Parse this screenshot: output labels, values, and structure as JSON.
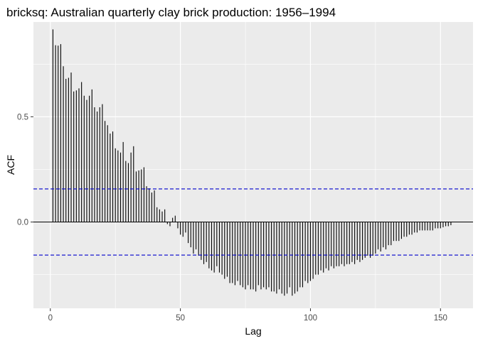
{
  "chart_data": {
    "type": "bar",
    "title": "bricksq: Australian quarterly clay brick production: 1956–1994",
    "xlabel": "Lag",
    "ylabel": "ACF",
    "xlim": [
      -6.5,
      162.5
    ],
    "ylim": [
      -0.41,
      0.95
    ],
    "x_ticks": [
      0,
      50,
      100,
      150
    ],
    "y_ticks": [
      -0.5,
      0.0,
      0.5
    ],
    "y_tick_labels": [
      "0.0",
      "0.5"
    ],
    "x_tick_labels": [
      "0",
      "50",
      "100",
      "150"
    ],
    "grid": true,
    "confidence_bound": 0.157,
    "colors": {
      "panel": "#ebebeb",
      "grid_major": "#ffffff",
      "bars": "#000000",
      "ci": "#0000cc",
      "zero_line": "#000000"
    },
    "lags": [
      1,
      2,
      3,
      4,
      5,
      6,
      7,
      8,
      9,
      10,
      11,
      12,
      13,
      14,
      15,
      16,
      17,
      18,
      19,
      20,
      21,
      22,
      23,
      24,
      25,
      26,
      27,
      28,
      29,
      30,
      31,
      32,
      33,
      34,
      35,
      36,
      37,
      38,
      39,
      40,
      41,
      42,
      43,
      44,
      45,
      46,
      47,
      48,
      49,
      50,
      51,
      52,
      53,
      54,
      55,
      56,
      57,
      58,
      59,
      60,
      61,
      62,
      63,
      64,
      65,
      66,
      67,
      68,
      69,
      70,
      71,
      72,
      73,
      74,
      75,
      76,
      77,
      78,
      79,
      80,
      81,
      82,
      83,
      84,
      85,
      86,
      87,
      88,
      89,
      90,
      91,
      92,
      93,
      94,
      95,
      96,
      97,
      98,
      99,
      100,
      101,
      102,
      103,
      104,
      105,
      106,
      107,
      108,
      109,
      110,
      111,
      112,
      113,
      114,
      115,
      116,
      117,
      118,
      119,
      120,
      121,
      122,
      123,
      124,
      125,
      126,
      127,
      128,
      129,
      130,
      131,
      132,
      133,
      134,
      135,
      136,
      137,
      138,
      139,
      140,
      141,
      142,
      143,
      144,
      145,
      146,
      147,
      148,
      149,
      150,
      151,
      152,
      153,
      154
    ],
    "values": [
      0.915,
      0.84,
      0.838,
      0.845,
      0.74,
      0.68,
      0.685,
      0.71,
      0.62,
      0.625,
      0.635,
      0.665,
      0.6,
      0.58,
      0.6,
      0.63,
      0.545,
      0.525,
      0.545,
      0.56,
      0.48,
      0.46,
      0.42,
      0.43,
      0.35,
      0.34,
      0.33,
      0.38,
      0.29,
      0.28,
      0.33,
      0.36,
      0.24,
      0.245,
      0.25,
      0.26,
      0.17,
      0.16,
      0.14,
      0.15,
      0.07,
      0.06,
      0.05,
      0.06,
      -0.01,
      -0.02,
      0.02,
      0.03,
      -0.03,
      -0.06,
      -0.07,
      -0.05,
      -0.1,
      -0.12,
      -0.15,
      -0.13,
      -0.16,
      -0.18,
      -0.2,
      -0.19,
      -0.22,
      -0.23,
      -0.24,
      -0.21,
      -0.24,
      -0.25,
      -0.27,
      -0.26,
      -0.29,
      -0.29,
      -0.3,
      -0.28,
      -0.3,
      -0.31,
      -0.32,
      -0.3,
      -0.32,
      -0.32,
      -0.33,
      -0.3,
      -0.32,
      -0.31,
      -0.32,
      -0.31,
      -0.33,
      -0.33,
      -0.34,
      -0.32,
      -0.34,
      -0.35,
      -0.34,
      -0.31,
      -0.35,
      -0.34,
      -0.33,
      -0.31,
      -0.31,
      -0.28,
      -0.29,
      -0.28,
      -0.27,
      -0.25,
      -0.25,
      -0.23,
      -0.24,
      -0.22,
      -0.23,
      -0.21,
      -0.22,
      -0.21,
      -0.21,
      -0.2,
      -0.21,
      -0.2,
      -0.2,
      -0.19,
      -0.2,
      -0.18,
      -0.19,
      -0.18,
      -0.17,
      -0.16,
      -0.17,
      -0.16,
      -0.15,
      -0.13,
      -0.14,
      -0.12,
      -0.13,
      -0.11,
      -0.11,
      -0.09,
      -0.09,
      -0.09,
      -0.08,
      -0.07,
      -0.07,
      -0.06,
      -0.06,
      -0.05,
      -0.05,
      -0.04,
      -0.04,
      -0.04,
      -0.04,
      -0.04,
      -0.04,
      -0.03,
      -0.03,
      -0.03,
      -0.025,
      -0.02,
      -0.02,
      -0.015
    ]
  }
}
